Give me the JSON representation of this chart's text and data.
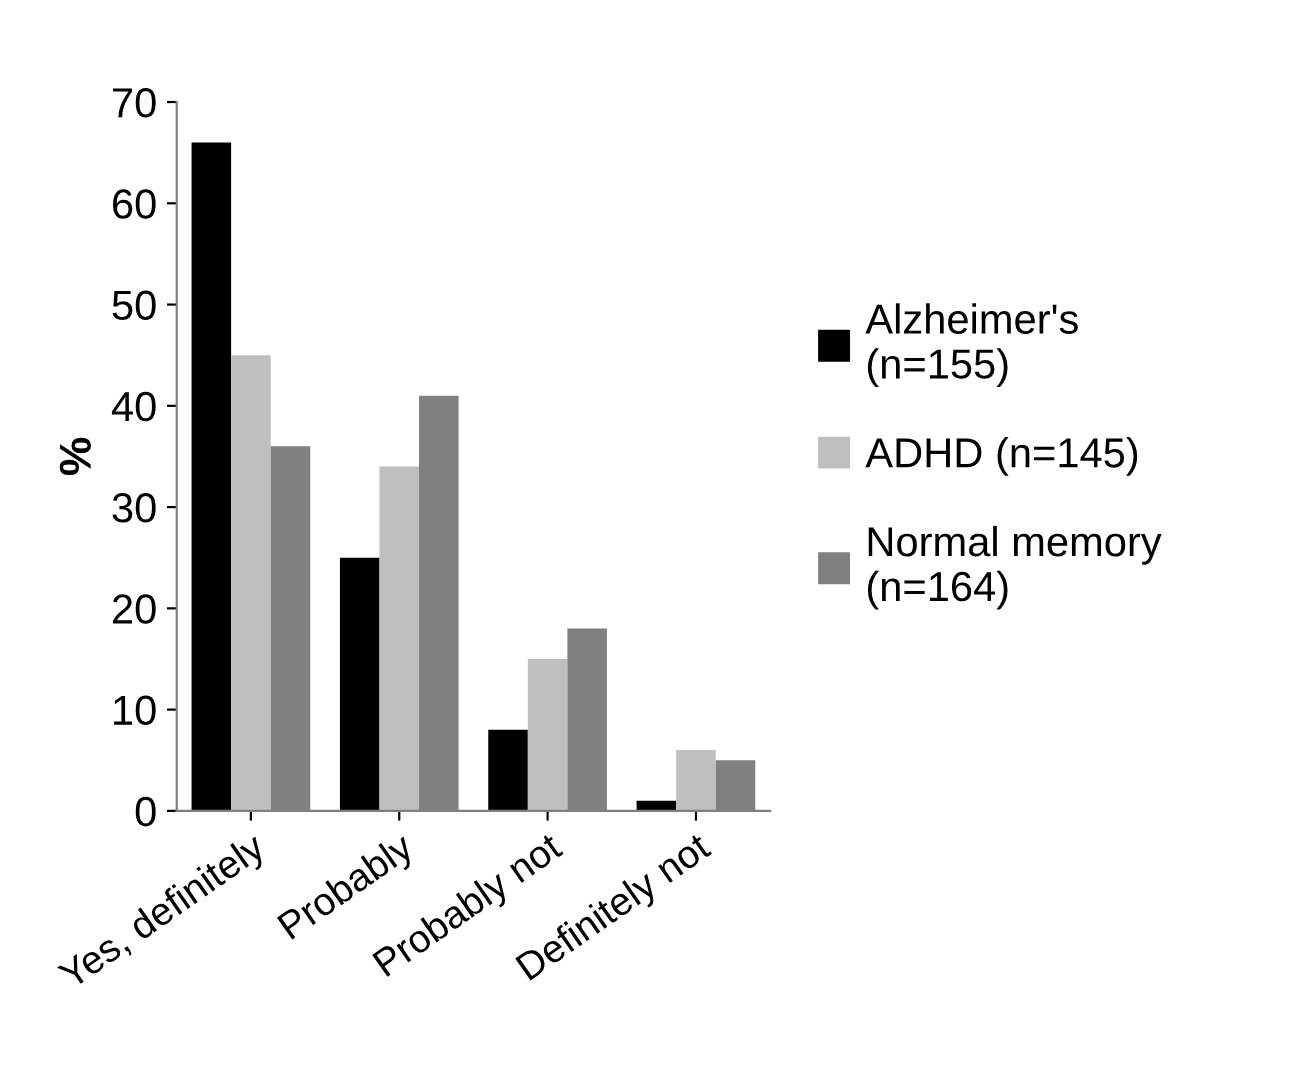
{
  "chart_data": {
    "type": "bar",
    "ylabel": "%",
    "categories": [
      "Yes, definitely",
      "Probably",
      "Probably not",
      "Definitely not"
    ],
    "series": [
      {
        "name": "Alzheimer's\n(n=155)",
        "color": "#000000",
        "values": [
          66,
          25,
          8,
          1
        ]
      },
      {
        "name": "ADHD (n=145)",
        "color": "#bfbfbf",
        "values": [
          45,
          34,
          15,
          6
        ]
      },
      {
        "name": "Normal memory\n(n=164)",
        "color": "#808080",
        "values": [
          36,
          41,
          18,
          5
        ]
      }
    ],
    "ylim": [
      0,
      70
    ],
    "yticks": [
      0,
      10,
      20,
      30,
      40,
      50,
      60,
      70
    ],
    "grid": false,
    "legend": "right"
  }
}
